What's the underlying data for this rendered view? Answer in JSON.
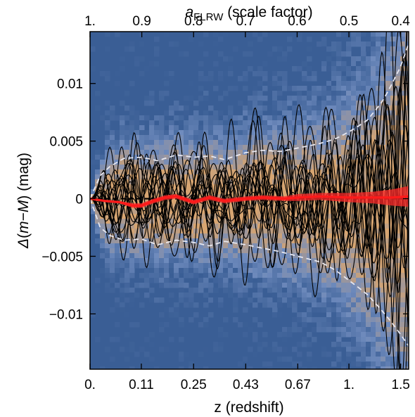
{
  "chart_data": {
    "type": "line",
    "title": "",
    "xlabel": "z (redshift)",
    "ylabel": "Δ(m−M) (mag)",
    "ylabel_parts": [
      "Δ",
      "(",
      "m",
      "−",
      "M",
      ") (mag)"
    ],
    "top_axis_label": "aFLRW (scale factor)",
    "top_axis_label_parts": [
      "a",
      "FLRW",
      " (scale factor)"
    ],
    "xlim": [
      0,
      1.6
    ],
    "ylim": [
      -0.0148,
      0.0145
    ],
    "x_scale": "nonlinear (uniform in scale factor a = 1/(1+z))",
    "x_tick_values": [
      0,
      0.11,
      0.25,
      0.43,
      0.67,
      1,
      1.5
    ],
    "x_tick_labels": [
      "0.",
      "0.11",
      "0.25",
      "0.43",
      "0.67",
      "1.",
      "1.5"
    ],
    "top_tick_values": [
      1,
      0.9,
      0.8,
      0.7,
      0.6,
      0.5,
      0.4
    ],
    "top_tick_labels": [
      "1.",
      "0.9",
      "0.8",
      "0.7",
      "0.6",
      "0.5",
      "0.4"
    ],
    "y_tick_values": [
      0.01,
      0.005,
      0,
      -0.005,
      -0.01
    ],
    "y_tick_labels": [
      "0.01",
      "0.005",
      "0",
      "−0.005",
      "−0.01"
    ],
    "colors": {
      "background": "#3a5e95",
      "density_mid": "#6f8bbd",
      "density_high": "#d7a571",
      "sample_lines": "#000000",
      "mean_line": "#ff1a1a",
      "band": "#ff2a2a",
      "envelope": "#e8e8f0",
      "zero_line": "#000000"
    },
    "series": [
      {
        "style": "dashed-white-envelope",
        "x": [
          0,
          0.02,
          0.04,
          0.07,
          0.11,
          0.15,
          0.2,
          0.25,
          0.3,
          0.35,
          0.43,
          0.5,
          0.58,
          0.67,
          0.8,
          0.9,
          1.0,
          1.15,
          1.3,
          1.5,
          1.6
        ],
        "upper": [
          0,
          0.002,
          0.0028,
          0.0035,
          0.0036,
          0.0033,
          0.0038,
          0.0036,
          0.0037,
          0.0034,
          0.004,
          0.0042,
          0.0041,
          0.0044,
          0.0048,
          0.0052,
          0.0058,
          0.0068,
          0.0085,
          0.0115,
          0.0135
        ],
        "lower": [
          0,
          -0.0025,
          -0.0032,
          -0.0036,
          -0.0035,
          -0.004,
          -0.0036,
          -0.0038,
          -0.0041,
          -0.0037,
          -0.004,
          -0.0043,
          -0.0046,
          -0.005,
          -0.0055,
          -0.0062,
          -0.0071,
          -0.0083,
          -0.0098,
          -0.0118,
          -0.0128
        ]
      },
      {
        "style": "red-mean",
        "x": [
          0,
          0.03,
          0.06,
          0.09,
          0.11,
          0.14,
          0.17,
          0.2,
          0.25,
          0.3,
          0.35,
          0.43,
          0.5,
          0.6,
          0.67,
          0.8,
          1.0,
          1.2,
          1.4,
          1.6
        ],
        "values": [
          0,
          -0.0002,
          -0.0003,
          -0.0006,
          -0.0006,
          -0.0002,
          0.0001,
          0.0002,
          -0.0003,
          0.0001,
          -0.0002,
          0.0,
          0.0001,
          0.0,
          0.0001,
          0.0002,
          0.0001,
          0.0001,
          0.0001,
          0.0002
        ],
        "band_halfwidth": [
          0,
          0.0001,
          0.0001,
          0.0002,
          0.0002,
          0.0002,
          0.0002,
          0.0002,
          0.0002,
          0.0002,
          0.0002,
          0.0002,
          0.0002,
          0.0002,
          0.0003,
          0.0003,
          0.0004,
          0.0005,
          0.0007,
          0.0009
        ]
      }
    ],
    "sample_lines_count": 18
  }
}
